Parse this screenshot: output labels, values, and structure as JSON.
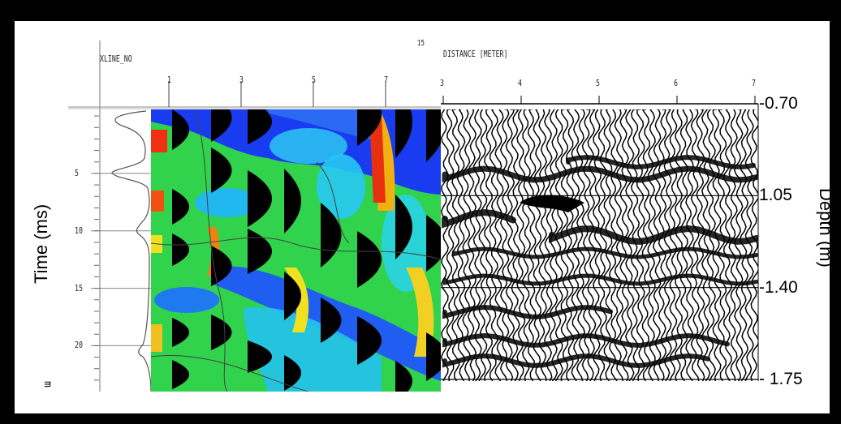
{
  "figure": {
    "header_left": "XLINE_NO",
    "header_mid": "15",
    "header_dist": "DISTANCE [METER]",
    "corner_mark": "m",
    "time_axis_label": "Time (ms)",
    "depth_axis_label": "Depth (m)"
  },
  "chart_data": [
    {
      "type": "heatmap",
      "description_panel": "left",
      "xlabel": "XLINE_NO",
      "x_tick_labels": [
        "1",
        "3",
        "5",
        "7"
      ],
      "ylabel": "Time (ms)",
      "y_ticks": [
        5,
        10,
        15,
        20
      ],
      "y_tick_labels": [
        "5",
        "10",
        "15",
        "20"
      ],
      "ylim": [
        -0.5,
        23.5
      ]
    },
    {
      "type": "line",
      "description_panel": "right",
      "xlabel": "DISTANCE [METER]",
      "x_ticks": [
        3,
        4,
        5,
        6,
        7
      ],
      "x_tick_labels": [
        "3",
        "4",
        "5",
        "6",
        "7"
      ],
      "ylabel": "Depth (m)",
      "depth_ticks": [
        0.7,
        1.05,
        1.4,
        1.75
      ],
      "depth_tick_labels": [
        "-0.70",
        "1.05",
        "-1.40",
        "- 1.75"
      ],
      "ylim": [
        0.7,
        1.75
      ]
    }
  ],
  "colors": {
    "frame": "#000000",
    "panel": "#ffffff",
    "heat_blue": "#1a3cf0",
    "heat_cyan": "#22c6f2",
    "heat_green": "#34d04a",
    "heat_yellow": "#f2e21c",
    "heat_red": "#ee2a10",
    "wiggle": "#000000",
    "top_axis_green": "#0a9a2a"
  }
}
